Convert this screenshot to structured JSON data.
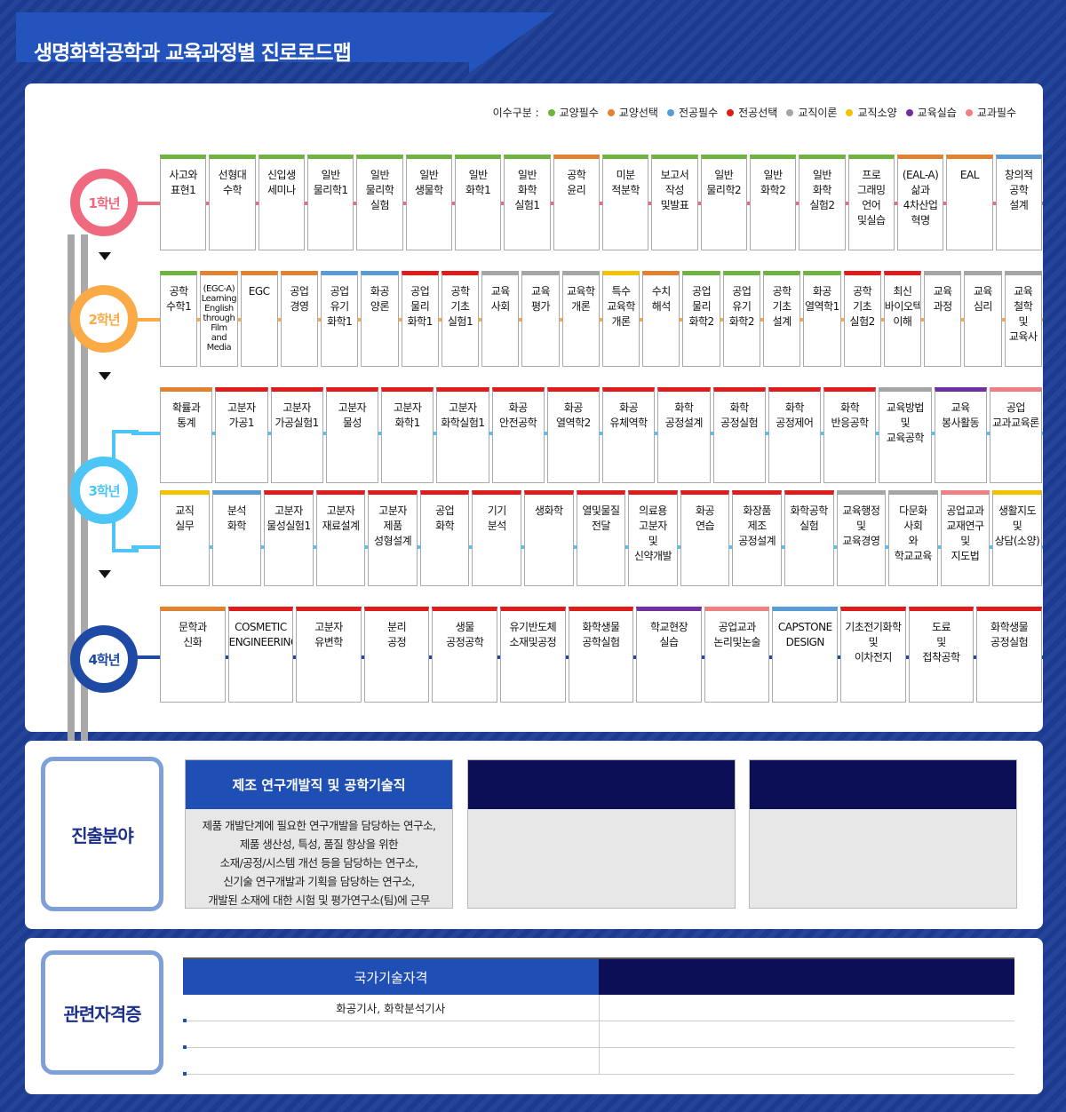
{
  "title": "생명화학공학과 교육과정별 진로로드맵",
  "legend": {
    "label": "이수구분 :",
    "items": [
      {
        "name": "교양필수",
        "color": "#6fb440"
      },
      {
        "name": "교양선택",
        "color": "#e2812f"
      },
      {
        "name": "전공필수",
        "color": "#5b9bd5"
      },
      {
        "name": "전공선택",
        "color": "#e01b1b"
      },
      {
        "name": "교직이론",
        "color": "#a5a5a5"
      },
      {
        "name": "교직소양",
        "color": "#f2c100"
      },
      {
        "name": "교육실습",
        "color": "#7030a0"
      },
      {
        "name": "교과필수",
        "color": "#ef7f83"
      }
    ]
  },
  "years": [
    {
      "label": "1학년",
      "color": "#ef6a7f"
    },
    {
      "label": "2학년",
      "color": "#fbaa45"
    },
    {
      "label": "3학년",
      "color": "#4dc6f7"
    },
    {
      "label": "4학년",
      "color": "#1e4aa5"
    }
  ],
  "rows": [
    {
      "courses": [
        {
          "name": "사고와\n표현1",
          "color": "#6fb440"
        },
        {
          "name": "선형대\n수학",
          "color": "#6fb440"
        },
        {
          "name": "신입생\n세미나",
          "color": "#6fb440"
        },
        {
          "name": "일반\n물리학1",
          "color": "#6fb440"
        },
        {
          "name": "일반\n물리학\n실험",
          "color": "#6fb440"
        },
        {
          "name": "일반\n생물학",
          "color": "#6fb440"
        },
        {
          "name": "일반\n화학1",
          "color": "#6fb440"
        },
        {
          "name": "일반\n화학\n실험1",
          "color": "#6fb440"
        },
        {
          "name": "공학\n윤리",
          "color": "#e2812f"
        },
        {
          "name": "미분\n적분학",
          "color": "#6fb440"
        },
        {
          "name": "보고서\n작성\n및발표",
          "color": "#6fb440"
        },
        {
          "name": "일반\n물리학2",
          "color": "#6fb440"
        },
        {
          "name": "일반\n화학2",
          "color": "#6fb440"
        },
        {
          "name": "일반\n화학\n실험2",
          "color": "#6fb440"
        },
        {
          "name": "프로\n그래밍\n언어\n및실습",
          "color": "#6fb440"
        },
        {
          "name": "(EAL-A)\n삶과\n4차산업\n혁명",
          "color": "#e2812f"
        },
        {
          "name": "EAL",
          "color": "#e2812f"
        },
        {
          "name": "창의적\n공학\n설계",
          "color": "#5b9bd5"
        }
      ]
    },
    {
      "courses": [
        {
          "name": "공학\n수학1",
          "color": "#6fb440"
        },
        {
          "name": "(EGC-A)\nLearning\nEnglish\nthrough\nFilm\nand\nMedia",
          "color": "#e2812f",
          "small": true
        },
        {
          "name": "EGC",
          "color": "#e2812f"
        },
        {
          "name": "공업\n경영",
          "color": "#e2812f"
        },
        {
          "name": "공업\n유기\n화학1",
          "color": "#5b9bd5"
        },
        {
          "name": "화공\n양론",
          "color": "#5b9bd5"
        },
        {
          "name": "공업\n물리\n화학1",
          "color": "#e01b1b"
        },
        {
          "name": "공학\n기초\n실험1",
          "color": "#e01b1b"
        },
        {
          "name": "교육\n사회",
          "color": "#a5a5a5"
        },
        {
          "name": "교육\n평가",
          "color": "#a5a5a5"
        },
        {
          "name": "교육학\n개론",
          "color": "#a5a5a5"
        },
        {
          "name": "특수\n교육학\n개론",
          "color": "#f2c100"
        },
        {
          "name": "수치\n해석",
          "color": "#e2812f"
        },
        {
          "name": "공업\n물리\n화학2",
          "color": "#6fb440"
        },
        {
          "name": "공업\n유기\n화학2",
          "color": "#6fb440"
        },
        {
          "name": "공학\n기초\n설계",
          "color": "#6fb440"
        },
        {
          "name": "화공\n열역학1",
          "color": "#6fb440"
        },
        {
          "name": "공학\n기초\n실험2",
          "color": "#e01b1b"
        },
        {
          "name": "최신\n바이오텍\n이해",
          "color": "#e01b1b"
        },
        {
          "name": "교육\n과정",
          "color": "#a5a5a5"
        },
        {
          "name": "교육\n심리",
          "color": "#a5a5a5"
        },
        {
          "name": "교육\n철학\n및\n교육사",
          "color": "#a5a5a5"
        }
      ]
    },
    {
      "courses": [
        {
          "name": "확률과\n통계",
          "color": "#e2812f"
        },
        {
          "name": "고분자\n가공1",
          "color": "#e01b1b"
        },
        {
          "name": "고분자\n가공실험1",
          "color": "#e01b1b"
        },
        {
          "name": "고분자\n물성",
          "color": "#e01b1b"
        },
        {
          "name": "고분자\n화학1",
          "color": "#e01b1b"
        },
        {
          "name": "고분자\n화학실험1",
          "color": "#e01b1b"
        },
        {
          "name": "화공\n안전공학",
          "color": "#e01b1b"
        },
        {
          "name": "화공\n열역학2",
          "color": "#e01b1b"
        },
        {
          "name": "화공\n유체역학",
          "color": "#e01b1b"
        },
        {
          "name": "화학\n공정설계",
          "color": "#e01b1b"
        },
        {
          "name": "화학\n공정실험",
          "color": "#e01b1b"
        },
        {
          "name": "화학\n공정제어",
          "color": "#e01b1b"
        },
        {
          "name": "화학\n반응공학",
          "color": "#e01b1b"
        },
        {
          "name": "교육방법\n및\n교육공학",
          "color": "#a5a5a5"
        },
        {
          "name": "교육\n봉사활동",
          "color": "#7030a0"
        },
        {
          "name": "공업\n교과교육론",
          "color": "#ef7f83"
        }
      ]
    },
    {
      "courses": [
        {
          "name": "교직\n실무",
          "color": "#f2c100"
        },
        {
          "name": "분석\n화학",
          "color": "#5b9bd5"
        },
        {
          "name": "고분자\n물성실험1",
          "color": "#e01b1b"
        },
        {
          "name": "고분자\n재료설계",
          "color": "#e01b1b"
        },
        {
          "name": "고분자\n제품\n성형설계",
          "color": "#e01b1b"
        },
        {
          "name": "공업\n화학",
          "color": "#e01b1b"
        },
        {
          "name": "기기\n분석",
          "color": "#e01b1b"
        },
        {
          "name": "생화학",
          "color": "#e01b1b"
        },
        {
          "name": "열및물질\n전달",
          "color": "#e01b1b"
        },
        {
          "name": "의료용\n고분자\n및\n신약개발",
          "color": "#e01b1b"
        },
        {
          "name": "화공\n연습",
          "color": "#e01b1b"
        },
        {
          "name": "화장품\n제조\n공정설계",
          "color": "#e01b1b"
        },
        {
          "name": "화학공학\n실험",
          "color": "#e01b1b"
        },
        {
          "name": "교육행정\n및\n교육경영",
          "color": "#a5a5a5"
        },
        {
          "name": "다문화\n사회\n와\n학교교육",
          "color": "#a5a5a5"
        },
        {
          "name": "공업교과\n교재연구\n및\n지도법",
          "color": "#ef7f83"
        },
        {
          "name": "생활지도\n및\n상담(소양)",
          "color": "#f2c100"
        }
      ]
    },
    {
      "courses": [
        {
          "name": "문학과\n신화",
          "color": "#e2812f"
        },
        {
          "name": "COSMETIC\nENGINEERING",
          "color": "#e01b1b"
        },
        {
          "name": "고분자\n유변학",
          "color": "#e01b1b"
        },
        {
          "name": "분리\n공정",
          "color": "#e01b1b"
        },
        {
          "name": "생물\n공정공학",
          "color": "#e01b1b"
        },
        {
          "name": "유기반도체\n소재및공정",
          "color": "#e01b1b"
        },
        {
          "name": "화학생물\n공학실험",
          "color": "#e01b1b"
        },
        {
          "name": "학교현장\n실습",
          "color": "#7030a0"
        },
        {
          "name": "공업교과\n논리및논술",
          "color": "#ef7f83"
        },
        {
          "name": "CAPSTONE\nDESIGN",
          "color": "#5b9bd5"
        },
        {
          "name": "기초전기화학\n및\n이차전지",
          "color": "#e01b1b"
        },
        {
          "name": "도료\n및\n접착공학",
          "color": "#e01b1b"
        },
        {
          "name": "화학생물\n공정실험",
          "color": "#e01b1b"
        }
      ]
    }
  ],
  "careers": {
    "label": "진출분야",
    "cards": [
      {
        "title": "제조 연구개발직 및 공학기술직",
        "body": "제품 개발단계에 필요한 연구개발을 담당하는 연구소,\n제품 생산성, 특성, 품질 향상을 위한\n소재/공정/시스템 개선 등을 담당하는 연구소,\n신기술 연구개발과 기획을 담당하는 연구소,\n개발된 소재에 대한 시험 및 평가연구소(팀)에 근무"
      },
      {
        "title": "",
        "body": ""
      },
      {
        "title": "",
        "body": ""
      }
    ]
  },
  "certs": {
    "label": "관련자격증",
    "headers": [
      "국가기술자격",
      ""
    ],
    "rows": [
      [
        "화공기사, 화학분석기사",
        ""
      ],
      [
        "",
        ""
      ],
      [
        "",
        ""
      ]
    ]
  }
}
